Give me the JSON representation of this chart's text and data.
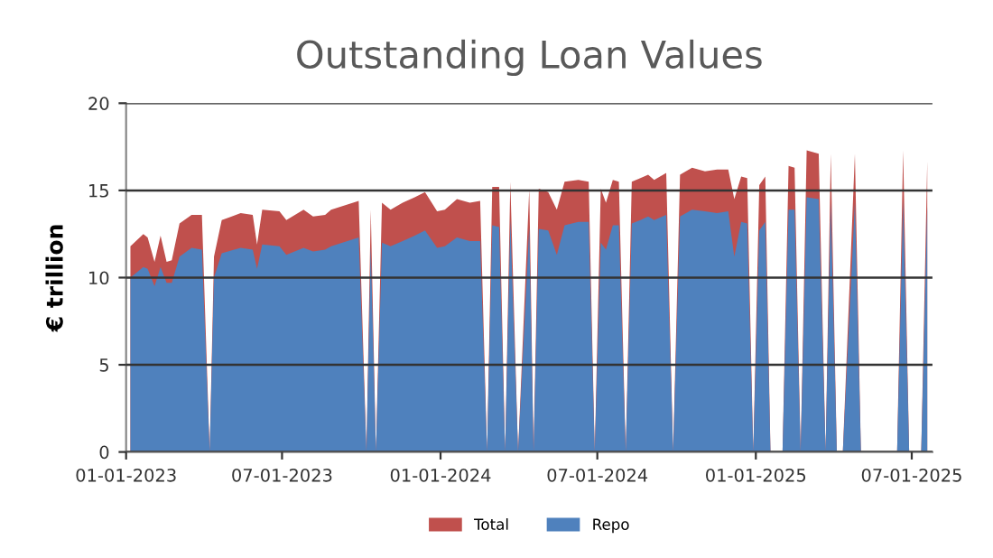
{
  "chart_data": {
    "type": "area",
    "title": "Outstanding Loan Values",
    "ylabel": "€ trillion",
    "x": [
      "2023-01-06",
      "2023-01-21",
      "2023-01-26",
      "2023-02-03",
      "2023-02-10",
      "2023-02-17",
      "2023-02-23",
      "2023-03-04",
      "2023-03-18",
      "2023-03-30",
      "2023-04-08",
      "2023-04-13",
      "2023-04-22",
      "2023-05-14",
      "2023-05-28",
      "2023-06-02",
      "2023-06-08",
      "2023-06-28",
      "2023-07-06",
      "2023-07-26",
      "2023-08-06",
      "2023-08-20",
      "2023-08-27",
      "2023-09-28",
      "2023-10-07",
      "2023-10-12",
      "2023-10-18",
      "2023-10-25",
      "2023-11-04",
      "2023-11-18",
      "2023-12-02",
      "2023-12-14",
      "2023-12-28",
      "2024-01-06",
      "2024-01-20",
      "2024-02-04",
      "2024-02-16",
      "2024-02-24",
      "2024-03-01",
      "2024-03-09",
      "2024-03-16",
      "2024-03-22",
      "2024-03-31",
      "2024-04-13",
      "2024-04-18",
      "2024-04-24",
      "2024-05-05",
      "2024-05-15",
      "2024-05-24",
      "2024-06-09",
      "2024-06-21",
      "2024-06-28",
      "2024-07-05",
      "2024-07-11",
      "2024-07-19",
      "2024-07-26",
      "2024-08-03",
      "2024-08-10",
      "2024-08-20",
      "2024-08-29",
      "2024-09-05",
      "2024-09-19",
      "2024-09-27",
      "2024-10-05",
      "2024-10-19",
      "2024-11-03",
      "2024-11-17",
      "2024-11-30",
      "2024-12-07",
      "2024-12-15",
      "2024-12-22",
      "2024-12-29",
      "2025-01-05",
      "2025-01-12",
      "2025-01-18",
      "2025-02-01",
      "2025-02-08",
      "2025-02-15",
      "2025-02-22",
      "2025-03-01",
      "2025-03-15",
      "2025-03-23",
      "2025-03-29",
      "2025-04-05",
      "2025-04-12",
      "2025-04-26",
      "2025-05-03",
      "2025-06-14",
      "2025-06-21",
      "2025-06-28",
      "2025-07-12",
      "2025-07-19"
    ],
    "series": [
      {
        "name": "Total",
        "color": "#c0504d",
        "values": [
          11.8,
          12.5,
          12.3,
          10.9,
          12.4,
          10.9,
          11.0,
          13.1,
          13.6,
          13.6,
          0,
          11.2,
          13.3,
          13.7,
          13.6,
          11.9,
          13.9,
          13.8,
          13.3,
          13.9,
          13.5,
          13.6,
          13.9,
          14.4,
          0,
          13.9,
          0,
          14.3,
          13.9,
          14.3,
          14.6,
          14.9,
          13.8,
          13.9,
          14.5,
          14.3,
          14.4,
          0,
          15.2,
          15.2,
          0,
          15.5,
          0,
          15.1,
          0,
          15.1,
          14.9,
          13.9,
          15.5,
          15.6,
          15.5,
          0,
          15.1,
          14.3,
          15.6,
          15.5,
          0,
          15.5,
          15.7,
          15.9,
          15.6,
          16.0,
          0,
          15.9,
          16.3,
          16.1,
          16.2,
          16.2,
          14.5,
          15.8,
          15.7,
          0,
          15.3,
          15.8,
          0,
          0,
          16.4,
          16.3,
          0,
          17.3,
          17.1,
          0,
          17.1,
          0,
          0,
          17.1,
          0,
          0,
          17.3,
          0,
          0,
          16.7
        ]
      },
      {
        "name": "Repo",
        "color": "#4f81bd",
        "values": [
          10.0,
          10.6,
          10.5,
          9.5,
          10.6,
          9.7,
          9.7,
          11.2,
          11.7,
          11.6,
          0,
          10.0,
          11.4,
          11.7,
          11.6,
          10.5,
          11.9,
          11.8,
          11.3,
          11.7,
          11.5,
          11.6,
          11.8,
          12.3,
          0,
          11.8,
          0,
          12.0,
          11.8,
          12.1,
          12.4,
          12.7,
          11.7,
          11.8,
          12.3,
          12.1,
          12.1,
          0,
          13.0,
          12.9,
          0,
          13.3,
          0,
          12.9,
          0,
          12.8,
          12.7,
          11.3,
          13.0,
          13.2,
          13.2,
          0,
          12.0,
          11.6,
          13.0,
          13.0,
          0,
          13.1,
          13.3,
          13.5,
          13.3,
          13.6,
          0,
          13.5,
          13.9,
          13.8,
          13.7,
          13.8,
          11.2,
          13.2,
          13.1,
          0,
          12.7,
          13.2,
          0,
          0,
          13.9,
          13.9,
          0,
          14.6,
          14.5,
          0,
          14.3,
          0,
          0,
          14.3,
          0,
          0,
          14.4,
          0,
          0,
          14.1
        ]
      }
    ],
    "xlim": [
      "2023-01-01",
      "2025-07-25"
    ],
    "xticks": [
      {
        "value": "2023-01-01",
        "label": "01-01-2023"
      },
      {
        "value": "2023-07-01",
        "label": "07-01-2023"
      },
      {
        "value": "2024-01-01",
        "label": "01-01-2024"
      },
      {
        "value": "2024-07-01",
        "label": "07-01-2024"
      },
      {
        "value": "2025-01-01",
        "label": "01-01-2025"
      },
      {
        "value": "2025-07-01",
        "label": "07-01-2025"
      }
    ],
    "ylim": [
      0,
      20
    ],
    "yticks": [
      0,
      5,
      10,
      15,
      20
    ],
    "grid": "y",
    "legend": "bottom"
  }
}
